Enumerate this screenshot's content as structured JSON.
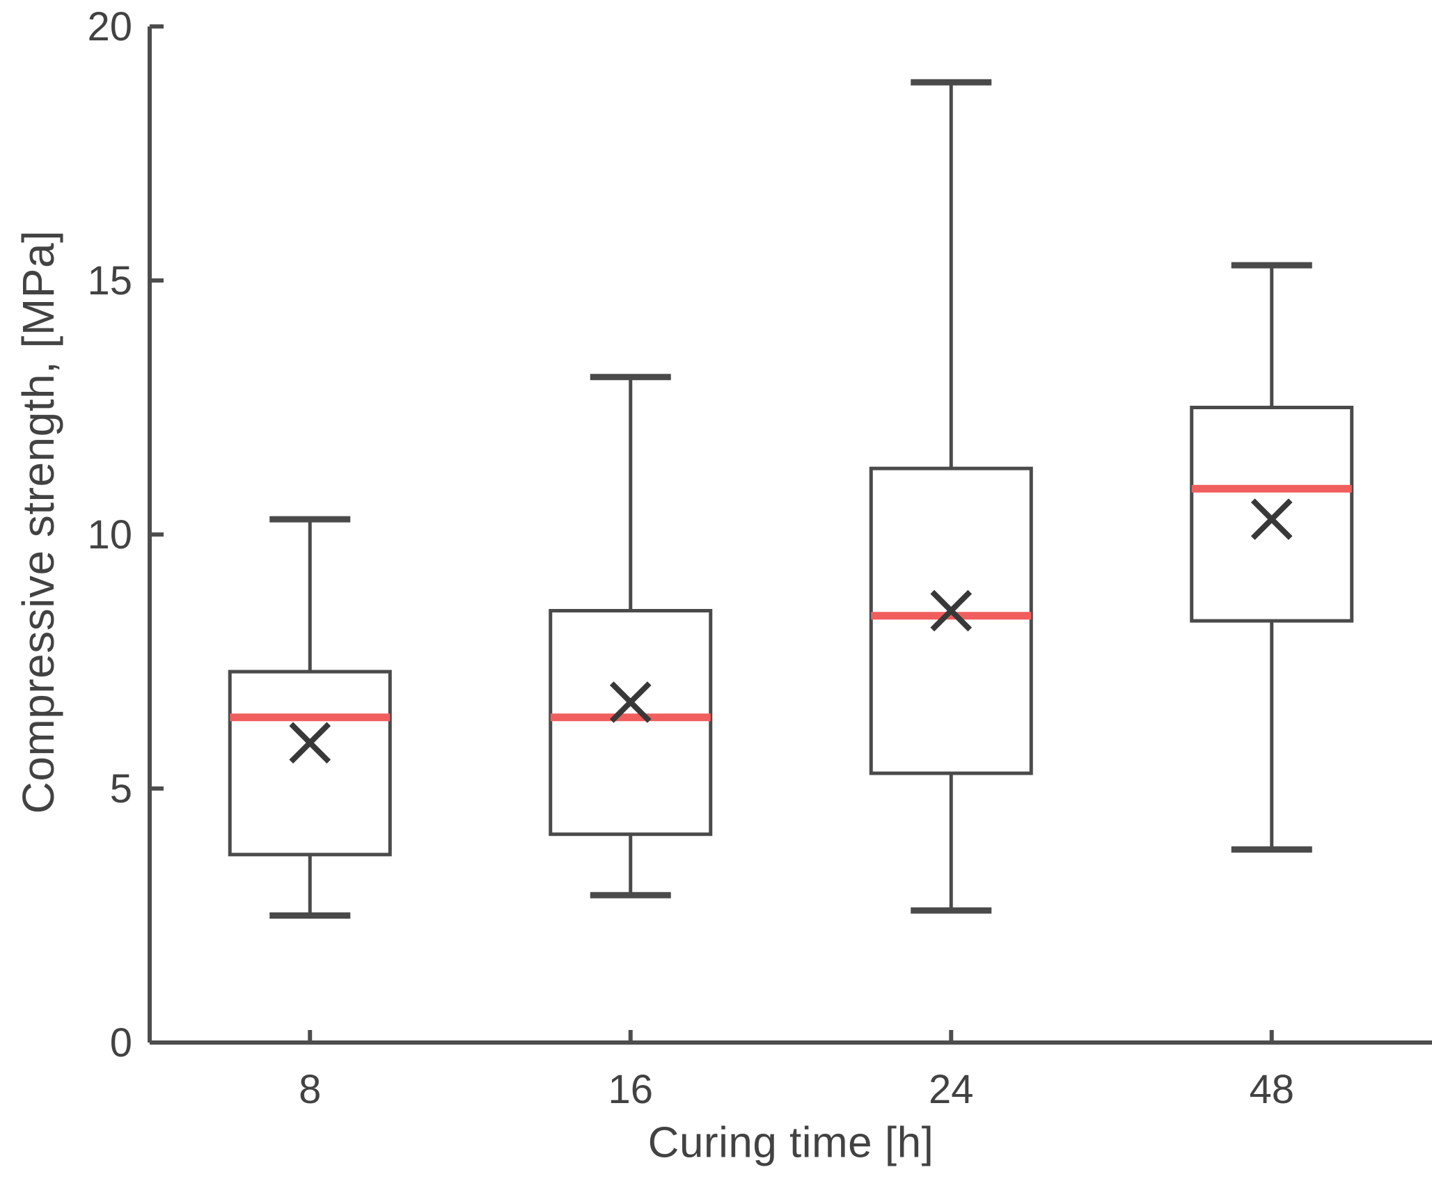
{
  "chart_data": {
    "type": "boxplot",
    "title": "",
    "xlabel": "Curing time [h]",
    "ylabel": "Compressive strength, [MPa]",
    "categories": [
      "8",
      "16",
      "24",
      "48"
    ],
    "ylim": [
      0,
      20
    ],
    "yticks": [
      0,
      5,
      10,
      15,
      20
    ],
    "grid": false,
    "legend": "none",
    "boxes": [
      {
        "category": "8",
        "whisker_low": 2.5,
        "q1": 3.7,
        "median": 6.4,
        "mean": 5.9,
        "q3": 7.3,
        "whisker_high": 10.3
      },
      {
        "category": "16",
        "whisker_low": 2.9,
        "q1": 4.1,
        "median": 6.4,
        "mean": 6.7,
        "q3": 8.5,
        "whisker_high": 13.1
      },
      {
        "category": "24",
        "whisker_low": 2.6,
        "q1": 5.3,
        "median": 8.4,
        "mean": 8.5,
        "q3": 11.3,
        "whisker_high": 18.9
      },
      {
        "category": "48",
        "whisker_low": 3.8,
        "q1": 8.3,
        "median": 10.9,
        "mean": 10.3,
        "q3": 12.5,
        "whisker_high": 15.3
      }
    ],
    "colors": {
      "axis": "#4d4d4d",
      "box_stroke": "#4a4a4a",
      "median_line": "#f15e5e",
      "mean_marker": "#383838",
      "text": "#424242",
      "background": "#ffffff"
    }
  }
}
